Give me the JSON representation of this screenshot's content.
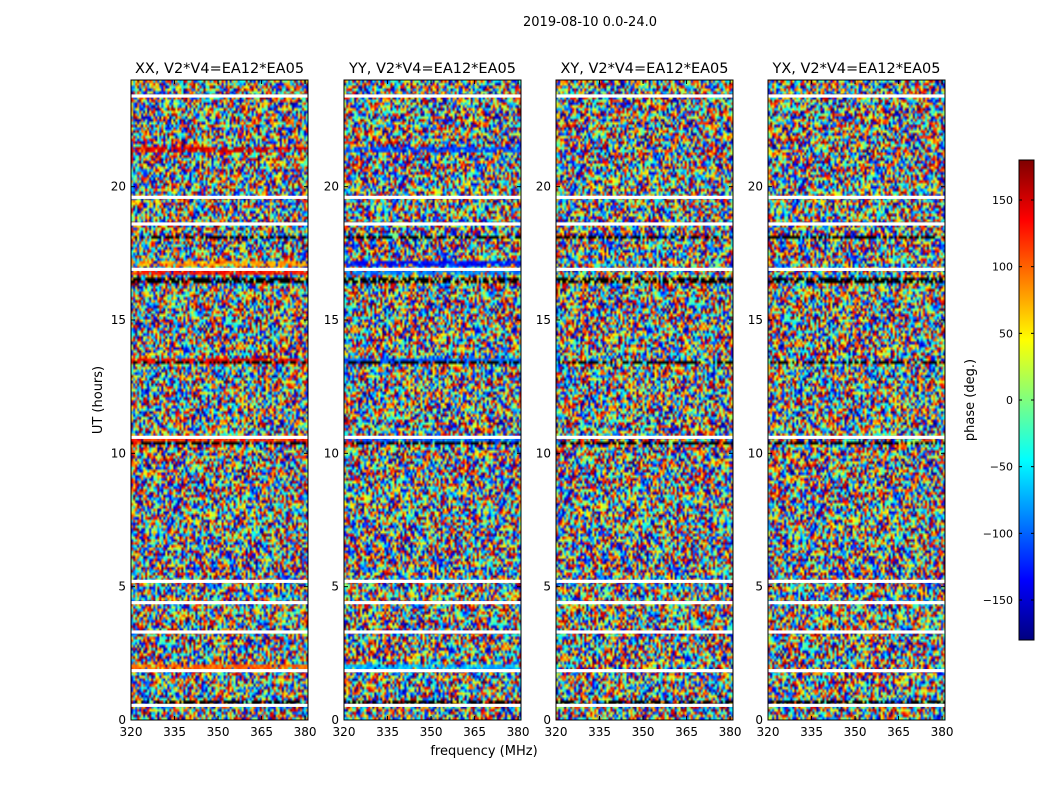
{
  "figure_title": "2019-08-10 0.0-24.0",
  "colorbar": {
    "label": "phase (deg.)",
    "range": [
      -180,
      180
    ],
    "ticks": [
      150,
      100,
      50,
      0,
      -50,
      -100,
      -150
    ],
    "tick_labels": [
      "150",
      "100",
      "50",
      "0",
      "−50",
      "−100",
      "−150"
    ],
    "colormap": "jet",
    "colors": [
      "#00007f",
      "#0000ff",
      "#007fff",
      "#00ffff",
      "#7fff7f",
      "#ffff00",
      "#ff7f00",
      "#ff0000",
      "#7f0000"
    ]
  },
  "chart_data": {
    "type": "heatmap",
    "xlabel": "frequency (MHz)",
    "ylabel": "UT (hours)",
    "xlim": [
      320,
      381
    ],
    "ylim": [
      0,
      24
    ],
    "xticks": [
      320,
      335,
      350,
      365,
      380
    ],
    "xtick_labels": [
      "320",
      "335",
      "350",
      "365",
      "380"
    ],
    "yticks": [
      0,
      5,
      10,
      15,
      20
    ],
    "ytick_labels": [
      "0",
      "5",
      "10",
      "15",
      "20"
    ],
    "value": "visibility phase (deg.)",
    "panels": [
      {
        "title": "XX, V2*V4=EA12*EA05",
        "polarization": "XX"
      },
      {
        "title": "YY, V2*V4=EA12*EA05",
        "polarization": "YY"
      },
      {
        "title": "XY, V2*V4=EA12*EA05",
        "polarization": "XY"
      },
      {
        "title": "YX, V2*V4=EA12*EA05",
        "polarization": "YX"
      }
    ],
    "flagged_gap_hours": [
      0.55,
      1.85,
      3.3,
      4.4,
      5.2,
      10.6,
      16.9,
      18.6,
      19.6,
      23.4
    ],
    "dark_band_hours": [
      0.6,
      10.4,
      13.4,
      16.5,
      18.1
    ],
    "coherent_phase_bands": [
      {
        "ut": 21.4,
        "XX": 145,
        "YY": -110
      },
      {
        "ut": 17.1,
        "XX": 80,
        "YY": -130
      },
      {
        "ut": 16.8,
        "XX": 130,
        "YY": -90
      },
      {
        "ut": 13.5,
        "XX": 140,
        "YY": -100
      },
      {
        "ut": 10.5,
        "XX": 120,
        "YY": -100
      },
      {
        "ut": 1.95,
        "XX": 100,
        "YY": -70
      }
    ]
  }
}
